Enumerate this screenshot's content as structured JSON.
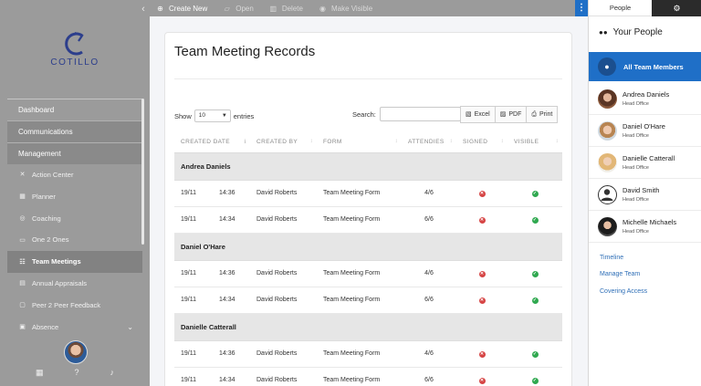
{
  "sidebar": {
    "logo_text": "COTILLO",
    "sections": {
      "dashboard": "Dashboard",
      "communications": "Communications",
      "management": "Management"
    },
    "items": [
      {
        "label": "Action Center",
        "icon": "crosshair-icon"
      },
      {
        "label": "Planner",
        "icon": "calendar-icon"
      },
      {
        "label": "Coaching",
        "icon": "compass-icon"
      },
      {
        "label": "One 2 Ones",
        "icon": "one-to-one-icon"
      },
      {
        "label": "Team Meetings",
        "icon": "team-icon"
      },
      {
        "label": "Annual Appraisals",
        "icon": "appraisal-icon"
      },
      {
        "label": "Peer 2 Peer Feedback",
        "icon": "feedback-icon"
      },
      {
        "label": "Absence",
        "icon": "absence-icon"
      }
    ]
  },
  "toolbar": {
    "create_new": "Create New",
    "open": "Open",
    "delete": "Delete",
    "make_visible": "Make Visible"
  },
  "main": {
    "title": "Team Meeting Records",
    "show_label": "Show",
    "show_value": "10",
    "entries_label": "entries",
    "search_label": "Search:",
    "search_value": "",
    "export": {
      "excel": "Excel",
      "pdf": "PDF",
      "print": "Print"
    },
    "columns": [
      "CREATED DATE",
      "CREATED BY",
      "FORM",
      "ATTENDIES",
      "SIGNED",
      "VISIBLE"
    ],
    "groups": [
      {
        "name": "Andrea Daniels",
        "rows": [
          {
            "date": "19/11",
            "time": "14:36",
            "by": "David Roberts",
            "form": "Team Meeting Form",
            "att": "4/6",
            "signed": false,
            "visible": true
          },
          {
            "date": "19/11",
            "time": "14:34",
            "by": "David Roberts",
            "form": "Team Meeting Form",
            "att": "6/6",
            "signed": false,
            "visible": true
          }
        ]
      },
      {
        "name": "Daniel O'Hare",
        "rows": [
          {
            "date": "19/11",
            "time": "14:36",
            "by": "David Roberts",
            "form": "Team Meeting Form",
            "att": "4/6",
            "signed": false,
            "visible": true
          },
          {
            "date": "19/11",
            "time": "14:34",
            "by": "David Roberts",
            "form": "Team Meeting Form",
            "att": "6/6",
            "signed": false,
            "visible": true
          }
        ]
      },
      {
        "name": "Danielle Catterall",
        "rows": [
          {
            "date": "19/11",
            "time": "14:36",
            "by": "David Roberts",
            "form": "Team Meeting Form",
            "att": "4/6",
            "signed": false,
            "visible": true
          },
          {
            "date": "19/11",
            "time": "14:34",
            "by": "David Roberts",
            "form": "Team Meeting Form",
            "att": "6/6",
            "signed": false,
            "visible": true
          }
        ]
      }
    ]
  },
  "rpanel": {
    "tab_people": "People",
    "tab_settings_icon": "gear-icon",
    "your_people": "Your People",
    "all_team": "All Team Members",
    "people": [
      {
        "name": "Andrea Daniels",
        "status": "Head Office"
      },
      {
        "name": "Daniel O'Hare",
        "status": "Head Office"
      },
      {
        "name": "Danielle Catterall",
        "status": "Head Office"
      },
      {
        "name": "David Smith",
        "status": "Head Office"
      },
      {
        "name": "Michelle Michaels",
        "status": "Head Office"
      }
    ],
    "links": [
      "Timeline",
      "Manage Team",
      "Covering Access"
    ]
  },
  "colors": {
    "accent": "#1f6fc7",
    "sidebar": "#9b9b9b",
    "signed_no": "#d64545",
    "visible_yes": "#2fa84f"
  }
}
